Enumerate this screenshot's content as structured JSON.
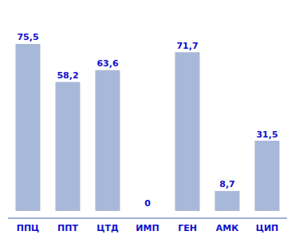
{
  "chart_data": {
    "type": "bar",
    "categories": [
      "ППЦ",
      "ППТ",
      "ЦТД",
      "ИМП",
      "ГЕН",
      "АМК",
      "ЦИП"
    ],
    "values": [
      75.5,
      58.2,
      63.6,
      0,
      71.7,
      8.7,
      31.5
    ],
    "value_labels": [
      "75,5",
      "58,2",
      "63,6",
      "0",
      "71,7",
      "8,7",
      "31,5"
    ],
    "color": "#a8b8d8",
    "ylim": [
      -3.5,
      92
    ],
    "data_labels": true,
    "tick_labels": "x"
  }
}
